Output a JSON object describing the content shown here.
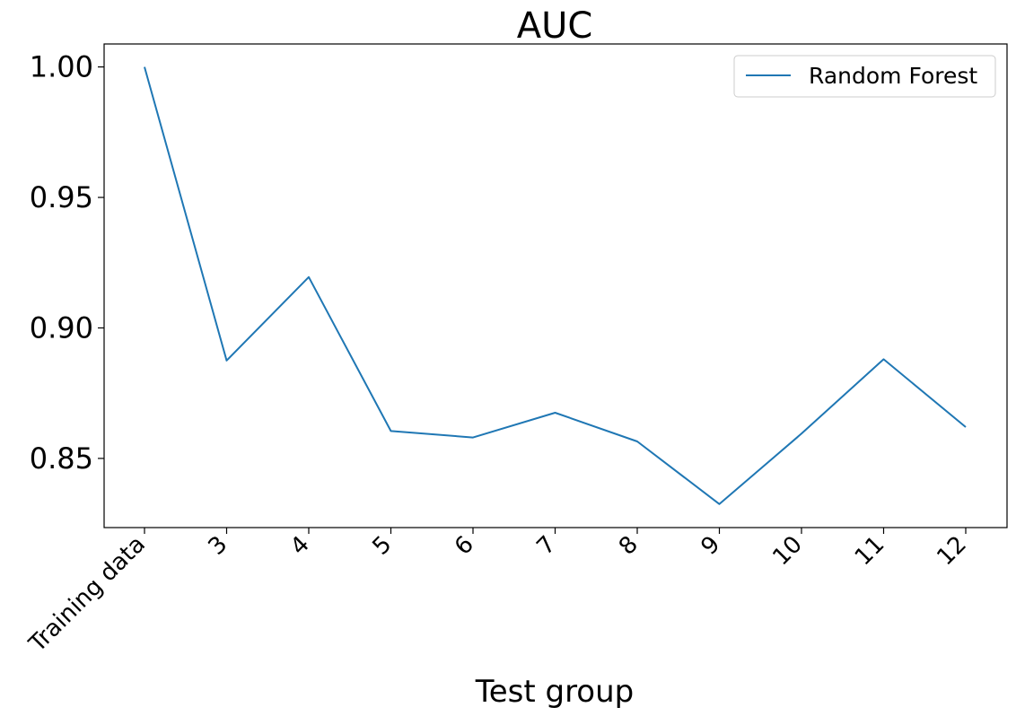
{
  "chart_data": {
    "type": "line",
    "title": "AUC",
    "xlabel": "Test group",
    "ylabel": "",
    "categories": [
      "Training data",
      "3",
      "4",
      "5",
      "6",
      "7",
      "8",
      "9",
      "10",
      "11",
      "12"
    ],
    "series": [
      {
        "name": "Random Forest",
        "color": "#1f77b4",
        "values": [
          1.0,
          0.8875,
          0.9195,
          0.8605,
          0.858,
          0.8675,
          0.8565,
          0.8325,
          0.8595,
          0.888,
          0.862
        ]
      }
    ],
    "ylim": [
      0.8235,
      1.0088
    ],
    "yticks": [
      "1.00",
      "0.95",
      "0.90",
      "0.85"
    ],
    "ytick_values": [
      1.0,
      0.95,
      0.9,
      0.85
    ],
    "grid": false,
    "legend": "top-right"
  }
}
